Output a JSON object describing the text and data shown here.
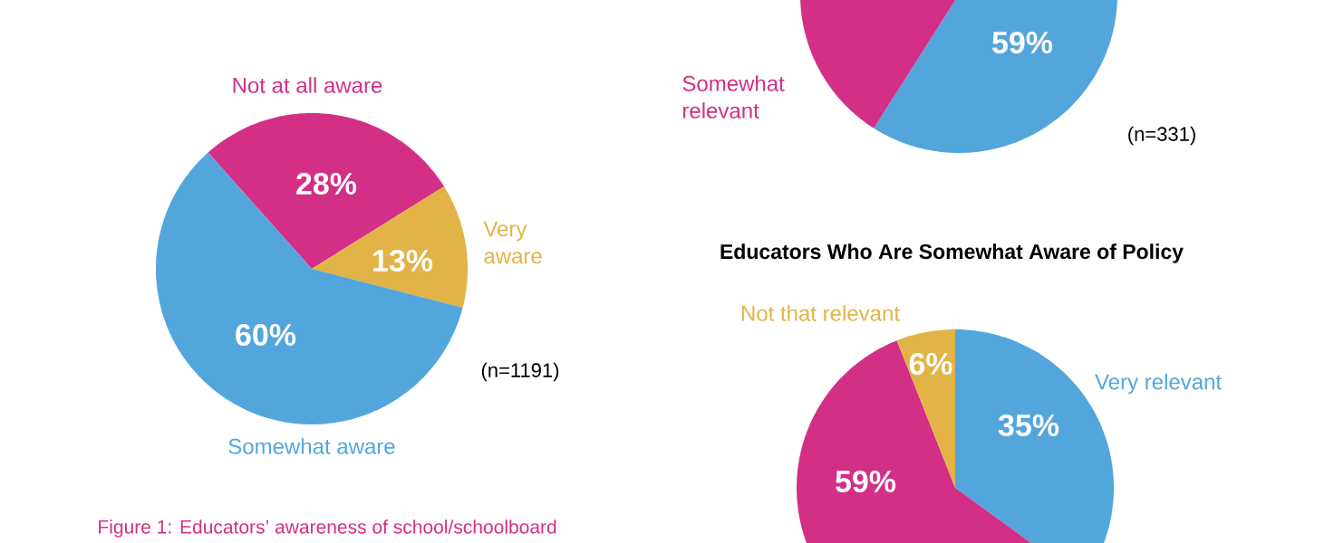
{
  "chart_data": [
    {
      "type": "pie",
      "categories": [
        "Not at all aware",
        "Very aware",
        "Somewhat aware"
      ],
      "values": [
        28,
        13,
        60
      ],
      "value_labels": [
        "28%",
        "13%",
        "60%"
      ],
      "colors": [
        "#d32f87",
        "#e2b346",
        "#53a6dc"
      ],
      "annotations": [
        "(n=1191)",
        "Figure 1: Educators’ awareness of school/schoolboard"
      ]
    },
    {
      "type": "pie",
      "categories": [
        null,
        "Somewhat relevant"
      ],
      "values": [
        59,
        41
      ],
      "value_labels": [
        "59%",
        null
      ],
      "colors": [
        "#53a6dc",
        "#d32f87"
      ],
      "annotations": [
        "(n=331)"
      ]
    },
    {
      "type": "pie",
      "title": "Educators Who Are Somewhat Aware of Policy",
      "categories": [
        "Very relevant",
        null,
        "Not that relevant"
      ],
      "values": [
        35,
        59,
        6
      ],
      "value_labels": [
        "35%",
        "59%",
        "6%"
      ],
      "colors": [
        "#53a6dc",
        "#d32f87",
        "#e2b346"
      ]
    }
  ]
}
